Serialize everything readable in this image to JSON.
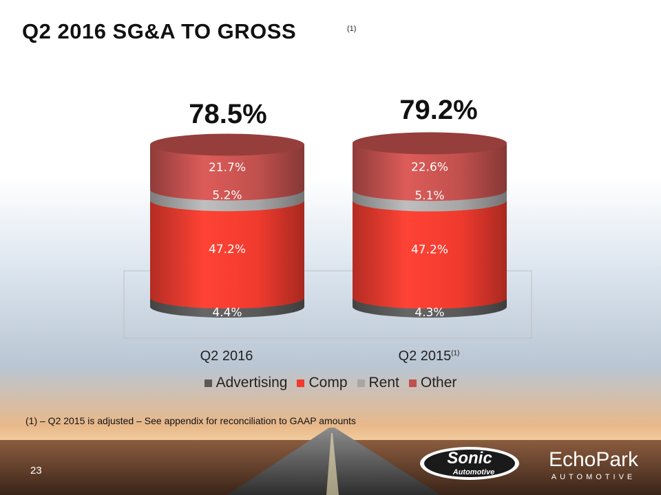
{
  "slide": {
    "title": "Q2 2016 SG&A TO GROSS",
    "title_note": "(1)",
    "footnote": "(1) – Q2 2015 is adjusted – See appendix for reconciliation to GAAP amounts",
    "page_number": "23",
    "logos": {
      "sonic": "Sonic Automotive",
      "echopark": "EchoPark Automotive"
    }
  },
  "chart_data": {
    "type": "bar",
    "stacked": true,
    "categories": [
      "Q2 2016",
      "Q2 2015"
    ],
    "category_notes": [
      "",
      "(1)"
    ],
    "totals": [
      "78.5%",
      "79.2%"
    ],
    "series": [
      {
        "name": "Advertising",
        "values": [
          4.4,
          4.3
        ],
        "labels": [
          "4.4%",
          "4.3%"
        ],
        "color": "#595959"
      },
      {
        "name": "Comp",
        "values": [
          47.2,
          47.2
        ],
        "labels": [
          "47.2%",
          "47.2%"
        ],
        "color": "#f03a2e"
      },
      {
        "name": "Rent",
        "values": [
          5.2,
          5.1
        ],
        "labels": [
          "5.2%",
          "5.1%"
        ],
        "color": "#a6a6a6"
      },
      {
        "name": "Other",
        "values": [
          21.7,
          22.6
        ],
        "labels": [
          "21.7%",
          "22.6%"
        ],
        "color": "#c0504d"
      }
    ],
    "legend_position": "bottom",
    "grid": false
  }
}
